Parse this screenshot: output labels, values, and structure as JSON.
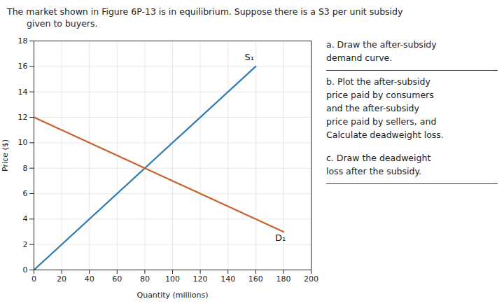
{
  "chart_data": {
    "type": "line",
    "title": [
      "The market shown in Figure 6P-13 is in equilibrium. Suppose there is a S3 per unit subsidy",
      "given to buyers."
    ],
    "xlabel": "Quantity (millions)",
    "ylabel": "Price ($)",
    "xlim": [
      0,
      200
    ],
    "ylim": [
      0,
      18
    ],
    "xticks": [
      0,
      20,
      40,
      60,
      80,
      100,
      120,
      140,
      160,
      180,
      200
    ],
    "yticks": [
      0,
      2,
      4,
      6,
      8,
      10,
      12,
      14,
      16,
      18
    ],
    "grid": true,
    "series": [
      {
        "name": "S₁",
        "color": "#2e7bb5",
        "x": [
          0,
          160
        ],
        "values": [
          0,
          16
        ],
        "label_x": 152,
        "label_y": 16.5
      },
      {
        "name": "D₁",
        "color": "#c8622a",
        "x": [
          0,
          180
        ],
        "values": [
          12,
          3
        ],
        "label_x": 174,
        "label_y": 2.8
      }
    ],
    "annotations": [
      [
        "a. Draw the after-subsidy",
        "demand curve."
      ],
      [
        "b. Plot the after-subsidy",
        "price paid by consumers",
        "and the after-subsidy",
        "price paid by sellers, and",
        "Calculate deadweight loss."
      ],
      [
        "c. Draw the deadweight",
        "loss after the subsidy."
      ]
    ]
  }
}
